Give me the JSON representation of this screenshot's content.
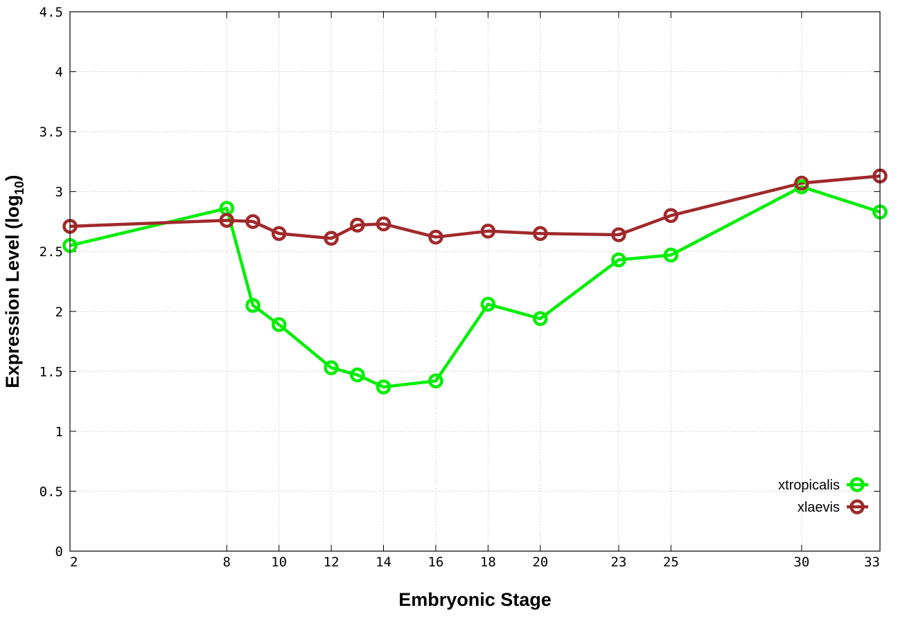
{
  "chart_data": {
    "type": "line",
    "xlabel": "Embryonic Stage",
    "ylabel_main": "Expression Level (log",
    "ylabel_sub": "10",
    "ylabel_close": ")",
    "x_ticks": [
      "2",
      "8",
      "10",
      "12",
      "14",
      "16",
      "18",
      "20",
      "23",
      "25",
      "30",
      "33"
    ],
    "x_tick_values": [
      2,
      8,
      10,
      12,
      14,
      16,
      18,
      20,
      23,
      25,
      30,
      33
    ],
    "y_ticks": [
      "0",
      "0.5",
      "1",
      "1.5",
      "2",
      "2.5",
      "3",
      "3.5",
      "4",
      "4.5"
    ],
    "ylim": [
      0,
      4.5
    ],
    "xlim": [
      2,
      33
    ],
    "grid": true,
    "legend_position": "bottom-right",
    "series": [
      {
        "name": "xtropicalis",
        "color": "#00ee00",
        "x": [
          2,
          8,
          9,
          10,
          12,
          13,
          14,
          16,
          18,
          20,
          23,
          25,
          30,
          33
        ],
        "y": [
          2.55,
          2.86,
          2.05,
          1.89,
          1.53,
          1.47,
          1.37,
          1.42,
          2.06,
          1.94,
          2.43,
          2.47,
          3.04,
          2.83
        ]
      },
      {
        "name": "xlaevis",
        "color": "#a0292b",
        "x": [
          2,
          8,
          9,
          10,
          12,
          13,
          14,
          16,
          18,
          20,
          23,
          25,
          30,
          33
        ],
        "y": [
          2.71,
          2.76,
          2.75,
          2.65,
          2.61,
          2.72,
          2.73,
          2.62,
          2.67,
          2.65,
          2.64,
          2.8,
          3.07,
          3.13
        ]
      }
    ]
  }
}
